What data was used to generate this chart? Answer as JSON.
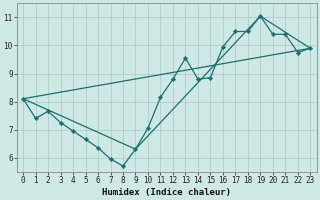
{
  "xlabel": "Humidex (Indice chaleur)",
  "xlim": [
    -0.5,
    23.5
  ],
  "ylim": [
    5.5,
    11.5
  ],
  "yticks": [
    6,
    7,
    8,
    9,
    10,
    11
  ],
  "xticks": [
    0,
    1,
    2,
    3,
    4,
    5,
    6,
    7,
    8,
    9,
    10,
    11,
    12,
    13,
    14,
    15,
    16,
    17,
    18,
    19,
    20,
    21,
    22,
    23
  ],
  "bg_color": "#cde8e5",
  "grid_color": "#aac8c5",
  "line_color": "#1a7070",
  "curve1_x": [
    0,
    1,
    2,
    3,
    4,
    5,
    6,
    7,
    8,
    9,
    10,
    11,
    12,
    13,
    14,
    15,
    16,
    17,
    18,
    19,
    20,
    21,
    22,
    23
  ],
  "curve1_y": [
    8.1,
    7.4,
    7.65,
    7.25,
    6.95,
    6.65,
    6.35,
    5.95,
    5.7,
    6.3,
    7.05,
    8.15,
    8.8,
    9.55,
    8.8,
    8.85,
    9.95,
    10.5,
    10.5,
    11.05,
    10.4,
    10.4,
    9.75,
    9.9
  ],
  "line2_x": [
    0,
    23
  ],
  "line2_y": [
    8.1,
    9.9
  ],
  "line3_x": [
    0,
    9,
    19,
    23
  ],
  "line3_y": [
    8.1,
    6.3,
    11.05,
    9.9
  ]
}
